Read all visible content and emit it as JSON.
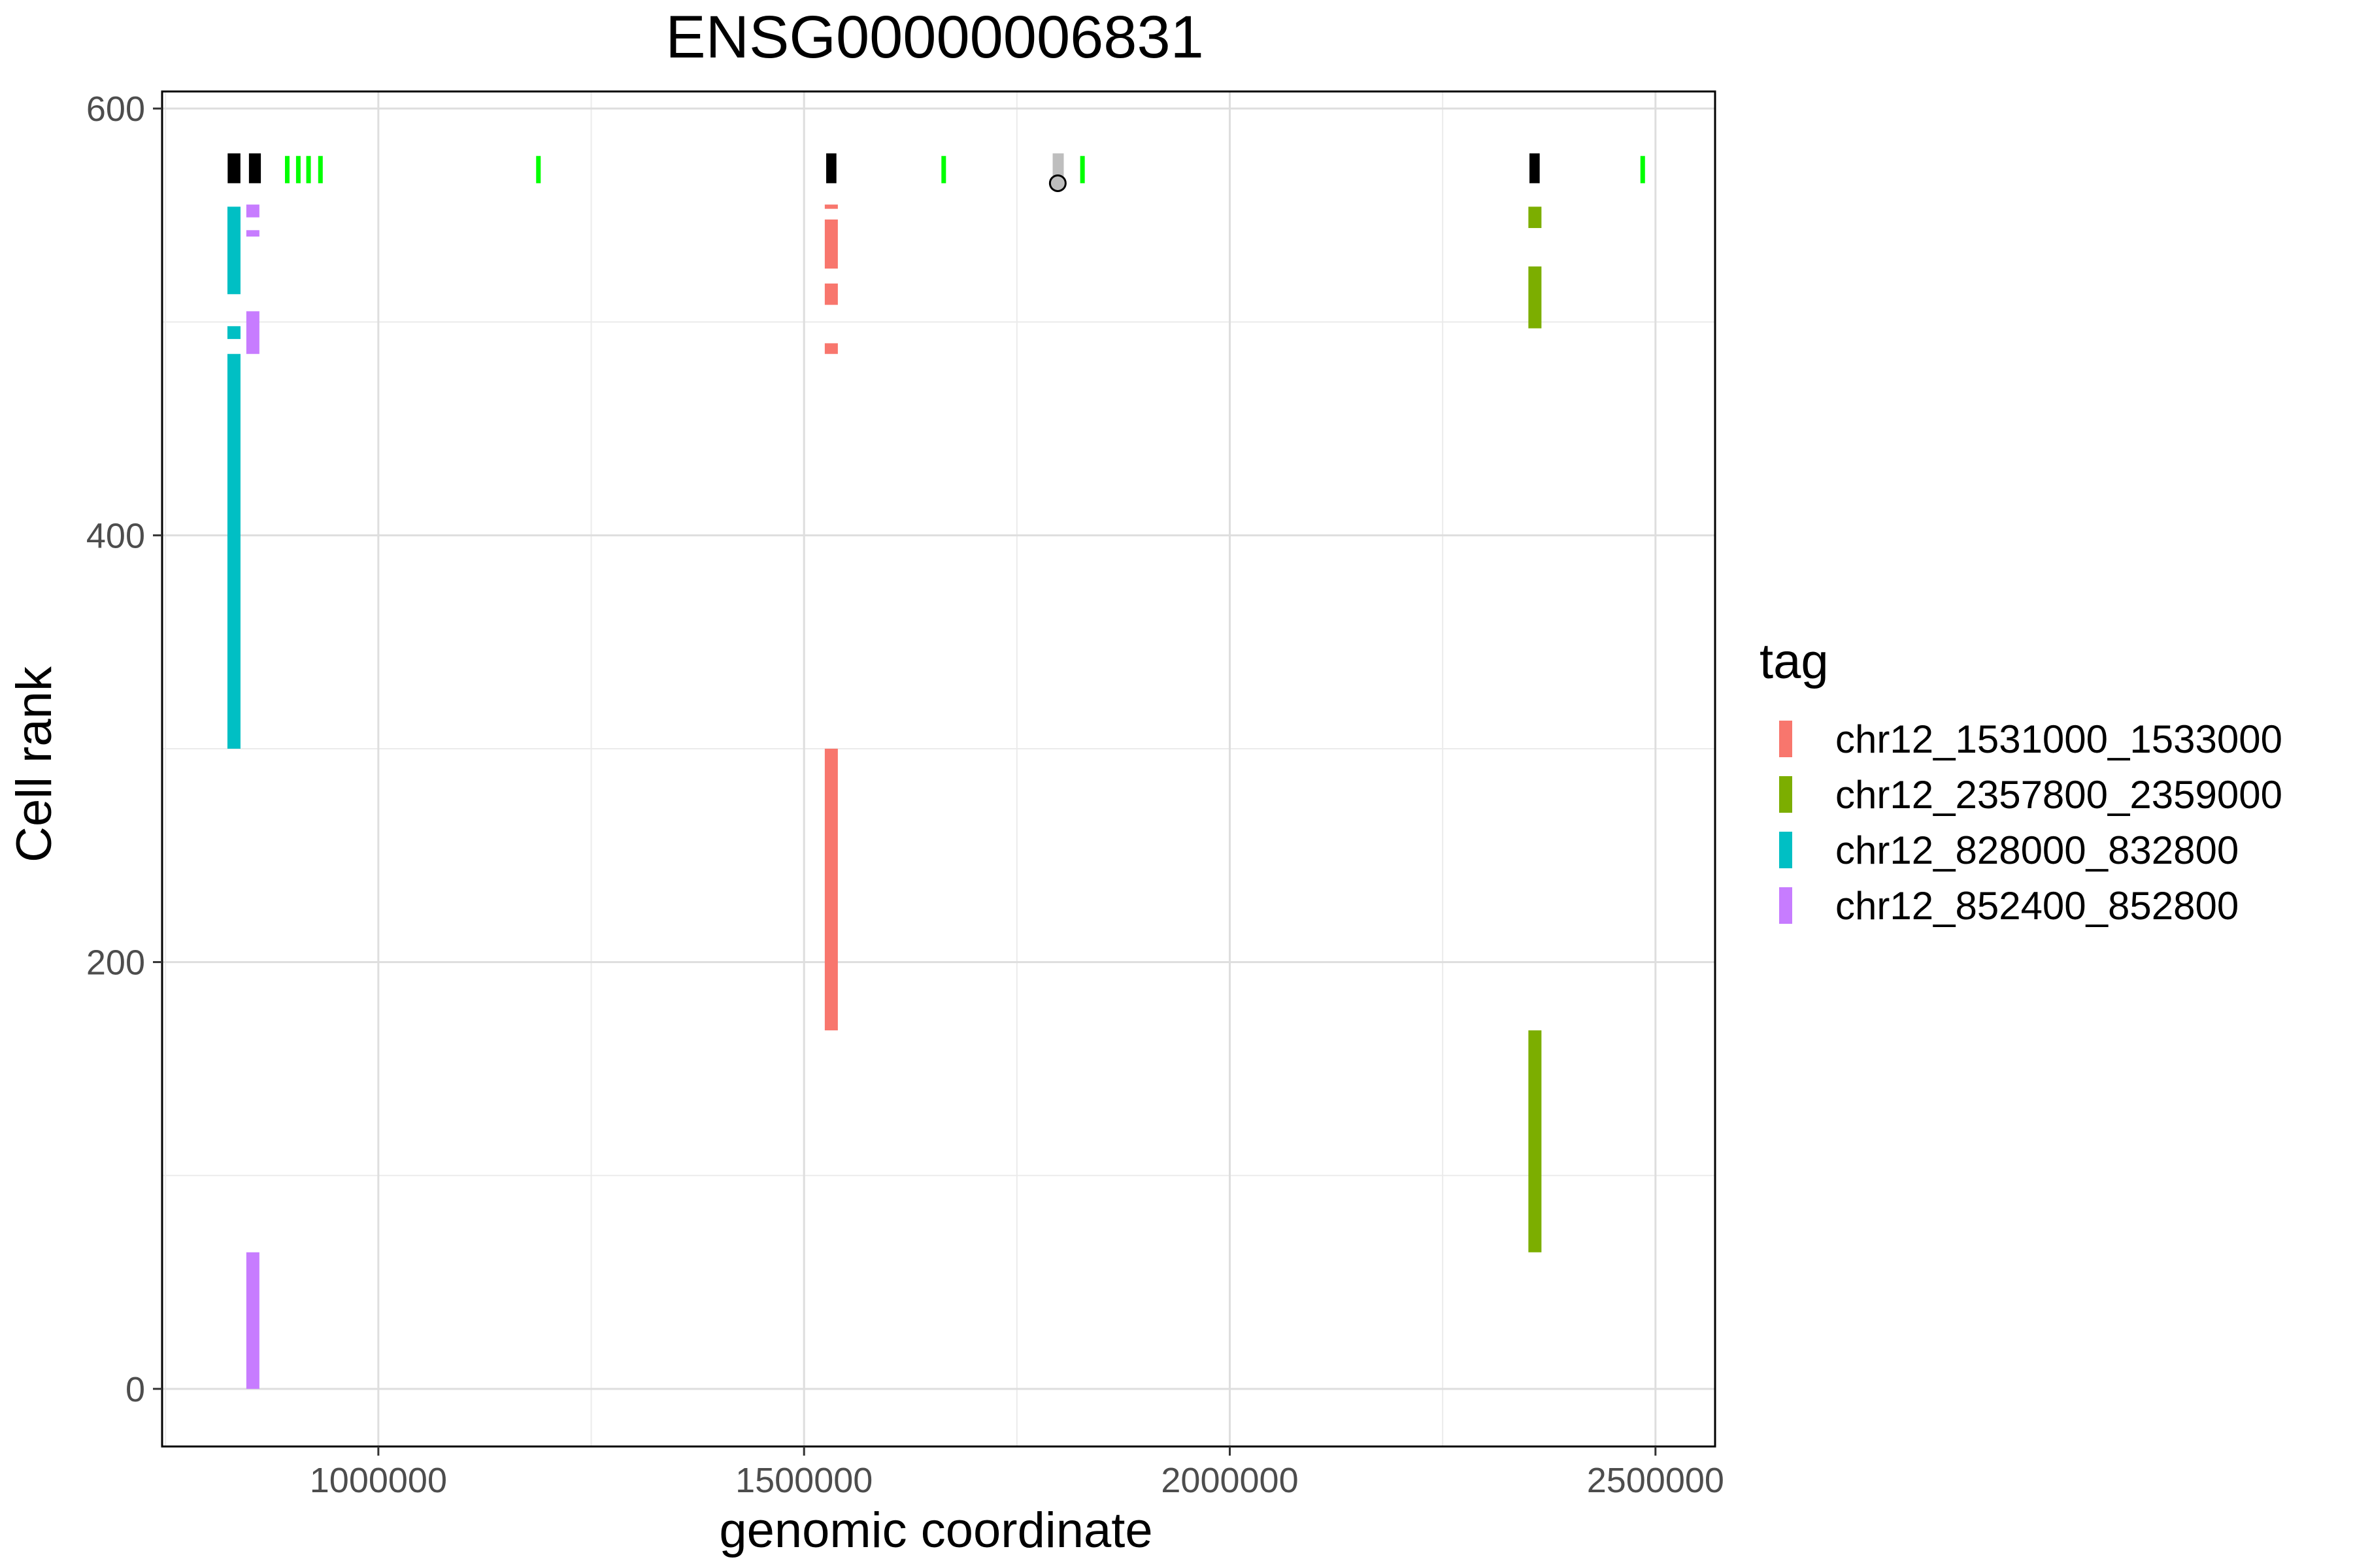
{
  "chart_data": {
    "type": "bar",
    "title": "ENSG00000006831",
    "xlabel": "genomic coordinate",
    "ylabel": "Cell rank",
    "xlim": [
      746000,
      2570000
    ],
    "ylim": [
      -27,
      608
    ],
    "xticks": [
      1000000,
      1500000,
      2000000,
      2500000
    ],
    "xtick_labels": [
      "1000000",
      "1500000",
      "2000000",
      "2500000"
    ],
    "yticks": [
      0,
      200,
      400,
      600
    ],
    "ytick_labels": [
      "0",
      "200",
      "400",
      "600"
    ],
    "grid": true,
    "legend": {
      "title": "tag",
      "placement": "right",
      "entries": [
        {
          "label": "chr12_1531000_1533000",
          "color": "#F8766D"
        },
        {
          "label": "chr12_2357800_2359000",
          "color": "#7CAE00"
        },
        {
          "label": "chr12_828000_832800",
          "color": "#00BFC4"
        },
        {
          "label": "chr12_852400_852800",
          "color": "#C77CFF"
        }
      ]
    },
    "series": [
      {
        "name": "chr12_1531000_1533000",
        "color": "#F8766D",
        "x_range": [
          1531000,
          1533000
        ],
        "rank_spans": [
          [
            168,
            300
          ],
          [
            485,
            490
          ],
          [
            508,
            518
          ],
          [
            525,
            548
          ],
          [
            553,
            555
          ]
        ]
      },
      {
        "name": "chr12_2357800_2359000",
        "color": "#7CAE00",
        "x_range": [
          2357800,
          2359000
        ],
        "rank_spans": [
          [
            64,
            168
          ],
          [
            497,
            526
          ],
          [
            544,
            554
          ]
        ]
      },
      {
        "name": "chr12_828000_832800",
        "color": "#00BFC4",
        "x_range": [
          828000,
          832800
        ],
        "rank_spans": [
          [
            300,
            485
          ],
          [
            492,
            498
          ],
          [
            513,
            554
          ]
        ]
      },
      {
        "name": "chr12_852400_852800",
        "color": "#C77CFF",
        "x_range": [
          852400,
          852800
        ],
        "rank_spans": [
          [
            0,
            64
          ],
          [
            485,
            505
          ],
          [
            540,
            543
          ],
          [
            549,
            555
          ]
        ]
      }
    ],
    "gene_track": {
      "y_range": [
        565,
        579
      ],
      "exons": [
        {
          "x": [
            823000,
            838000
          ],
          "color": "#000000"
        },
        {
          "x": [
            848000,
            862000
          ],
          "color": "#000000"
        },
        {
          "x": [
            1526000,
            1538000
          ],
          "color": "#000000"
        },
        {
          "x": [
            2352000,
            2364000
          ],
          "color": "#000000"
        },
        {
          "x": [
            1792000,
            1805000
          ],
          "color": "#BEBEBE"
        }
      ],
      "marks": [
        {
          "x": 893000,
          "color": "#00FF00"
        },
        {
          "x": 906000,
          "color": "#00FF00"
        },
        {
          "x": 918000,
          "color": "#00FF00"
        },
        {
          "x": 932000,
          "color": "#00FF00"
        },
        {
          "x": 1188000,
          "color": "#00FF00"
        },
        {
          "x": 1664000,
          "color": "#00FF00"
        },
        {
          "x": 1827000,
          "color": "#00FF00"
        },
        {
          "x": 2485000,
          "color": "#00FF00"
        }
      ],
      "point": {
        "x": 1798000,
        "y": 565
      }
    }
  }
}
